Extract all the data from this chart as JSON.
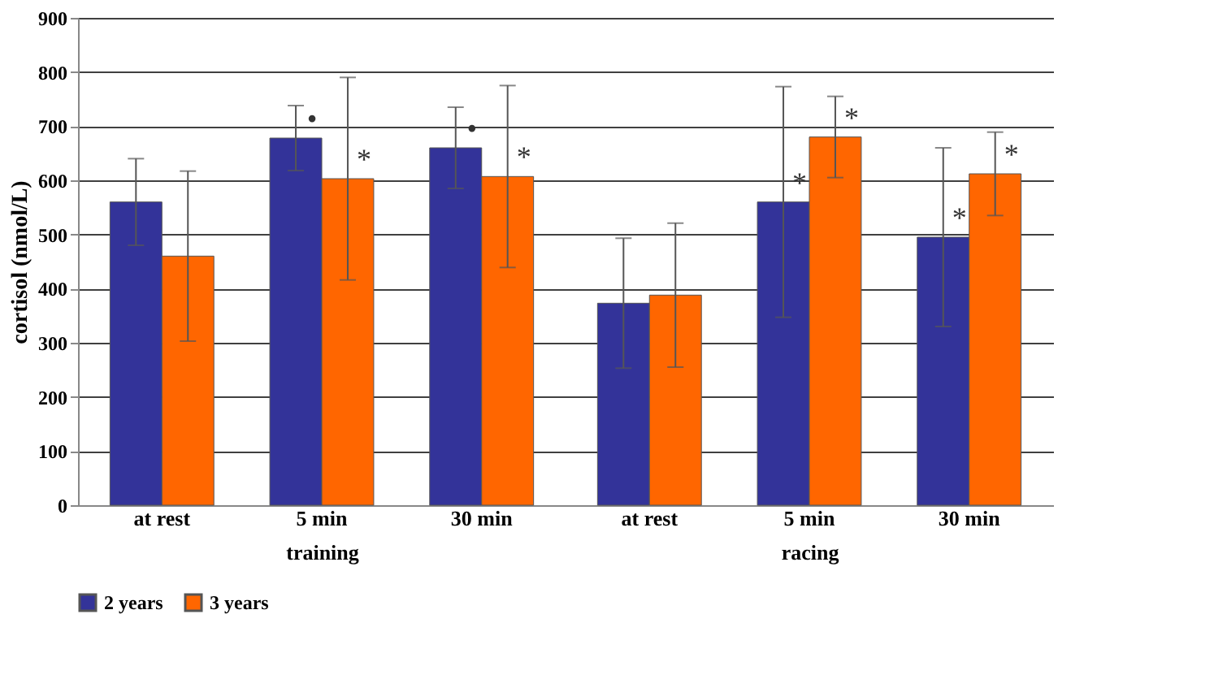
{
  "chart_data": [
    {
      "type": "bar",
      "xlabel": "training",
      "ylabel": "cortisol (nmol/L)",
      "categories": [
        "at rest",
        "5 min",
        "30 min"
      ],
      "series": [
        {
          "name": "2 years",
          "color": "#333399",
          "values": [
            560,
            678,
            660
          ],
          "errors": [
            80,
            60,
            75
          ],
          "value_labels": [
            null,
            "•",
            "•"
          ]
        },
        {
          "name": "3 years",
          "color": "#ff6600",
          "values": [
            460,
            603,
            607
          ],
          "errors": [
            157,
            187,
            168
          ],
          "value_labels": [
            null,
            "*",
            "*"
          ]
        }
      ],
      "ylim": [
        0,
        900
      ],
      "yticks": [
        0,
        100,
        200,
        300,
        400,
        500,
        600,
        700,
        800,
        900
      ],
      "grid": "y",
      "legend": "bottom"
    },
    {
      "type": "bar",
      "xlabel": "racing",
      "categories": [
        "at rest",
        "5 min",
        "30 min"
      ],
      "series": [
        {
          "name": "2 years",
          "color": "#333399",
          "values": [
            373,
            560,
            495
          ],
          "errors": [
            120,
            213,
            165
          ],
          "value_labels": [
            null,
            "*",
            "*"
          ]
        },
        {
          "name": "3 years",
          "color": "#ff6600",
          "values": [
            388,
            680,
            612
          ],
          "errors": [
            133,
            75,
            77
          ],
          "value_labels": [
            null,
            "*",
            "*"
          ]
        }
      ],
      "ylim": [
        0,
        900
      ],
      "yticks": [
        0,
        100,
        200,
        300,
        400,
        500,
        600,
        700,
        800,
        900
      ],
      "grid": "y",
      "legend": "bottom",
      "tick_labels": "x"
    }
  ]
}
